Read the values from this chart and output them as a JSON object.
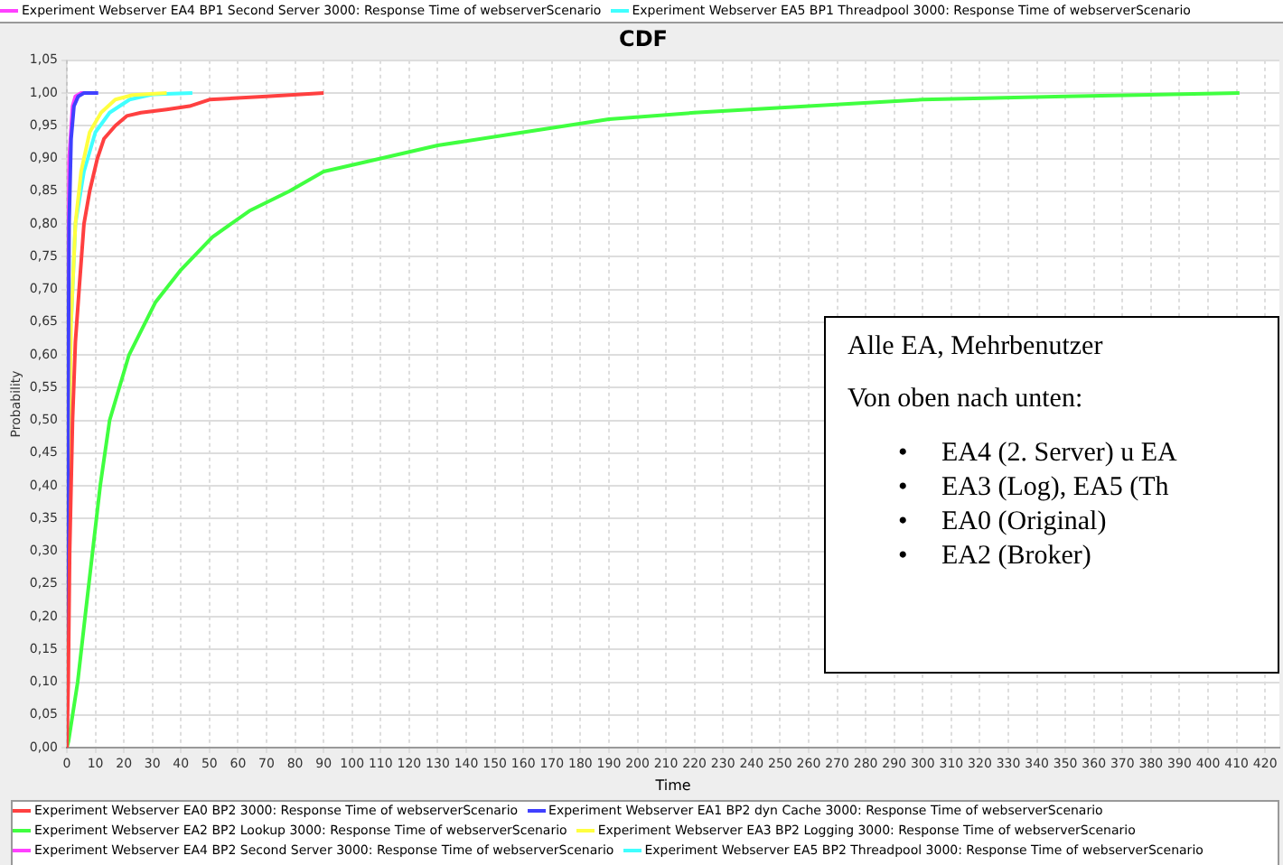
{
  "chart_data": {
    "type": "line",
    "title": "CDF",
    "xlabel": "Time",
    "ylabel": "Probability",
    "xlim": [
      0,
      425
    ],
    "xticks": [
      0,
      10,
      20,
      30,
      40,
      50,
      60,
      70,
      80,
      90,
      100,
      110,
      120,
      130,
      140,
      150,
      160,
      170,
      180,
      190,
      200,
      210,
      220,
      230,
      240,
      250,
      260,
      270,
      280,
      290,
      300,
      310,
      320,
      330,
      340,
      350,
      360,
      370,
      380,
      390,
      400,
      410,
      420
    ],
    "ylim": [
      0,
      1.05
    ],
    "yticks": [
      {
        "value": 0,
        "label": "0,00"
      },
      {
        "value": 0.05,
        "label": "0,05"
      },
      {
        "value": 0.1,
        "label": "0,10"
      },
      {
        "value": 0.15,
        "label": "0,15"
      },
      {
        "value": 0.2,
        "label": "0,20"
      },
      {
        "value": 0.25,
        "label": "0,25"
      },
      {
        "value": 0.3,
        "label": "0,30"
      },
      {
        "value": 0.35,
        "label": "0,35"
      },
      {
        "value": 0.4,
        "label": "0,40"
      },
      {
        "value": 0.45,
        "label": "0,45"
      },
      {
        "value": 0.5,
        "label": "0,50"
      },
      {
        "value": 0.55,
        "label": "0,55"
      },
      {
        "value": 0.6,
        "label": "0,60"
      },
      {
        "value": 0.65,
        "label": "0,65"
      },
      {
        "value": 0.7,
        "label": "0,70"
      },
      {
        "value": 0.75,
        "label": "0,75"
      },
      {
        "value": 0.8,
        "label": "0,80"
      },
      {
        "value": 0.85,
        "label": "0,85"
      },
      {
        "value": 0.9,
        "label": "0,90"
      },
      {
        "value": 0.95,
        "label": "0,95"
      },
      {
        "value": 1.0,
        "label": "1,00"
      },
      {
        "value": 1.05,
        "label": "1,05"
      }
    ],
    "grid": true,
    "legend": "bottom",
    "marker": "none",
    "line_style": "solid",
    "series": [
      {
        "name": "Experiment Webserver EA0 BP2 3000: Response Time of webserverScenario",
        "color": "#ff4040",
        "x": [
          0,
          0.5,
          1,
          2,
          3,
          4.3,
          6,
          8,
          10.7,
          13,
          17,
          21,
          26,
          35,
          43,
          50,
          70,
          90
        ],
        "values": [
          0,
          0.1,
          0.3,
          0.5,
          0.62,
          0.7,
          0.8,
          0.85,
          0.9,
          0.93,
          0.95,
          0.965,
          0.97,
          0.975,
          0.98,
          0.99,
          0.995,
          1.0
        ]
      },
      {
        "name": "Experiment Webserver EA1 BP2 dyn Cache 3000: Response Time of webserverScenario",
        "color": "#4040ff",
        "x": [
          0,
          0.3,
          0.8,
          1.5,
          2.5,
          4,
          6,
          11
        ],
        "values": [
          0,
          0.4,
          0.8,
          0.93,
          0.98,
          0.995,
          1.0,
          1.0
        ]
      },
      {
        "name": "Experiment Webserver EA2 BP2 Lookup 3000: Response Time of webserverScenario",
        "color": "#40ff40",
        "x": [
          0,
          0.6,
          3.8,
          6.4,
          11.7,
          15,
          21.8,
          31,
          40,
          51,
          64,
          78,
          90,
          100,
          130,
          160,
          190,
          220,
          260,
          300,
          350,
          411
        ],
        "values": [
          0,
          0.01,
          0.1,
          0.2,
          0.4,
          0.5,
          0.6,
          0.68,
          0.73,
          0.78,
          0.82,
          0.85,
          0.88,
          0.89,
          0.92,
          0.94,
          0.96,
          0.97,
          0.98,
          0.99,
          0.995,
          1.0
        ]
      },
      {
        "name": "Experiment Webserver EA3 BP2 Logging 3000: Response Time of webserverScenario",
        "color": "#ffff40",
        "x": [
          0,
          0.5,
          1.5,
          3,
          5,
          8,
          12,
          17,
          23,
          35
        ],
        "values": [
          0,
          0.4,
          0.65,
          0.8,
          0.88,
          0.94,
          0.97,
          0.99,
          0.997,
          1.0
        ]
      },
      {
        "name": "Experiment Webserver EA4 BP2 Second Server 3000: Response Time of webserverScenario",
        "color": "#ff40ff",
        "x": [
          0.3,
          0.8,
          2,
          3,
          5,
          7
        ],
        "values": [
          0.6,
          0.9,
          0.98,
          0.995,
          1.0,
          1.0
        ]
      },
      {
        "name": "Experiment Webserver EA5 BP2 Threadpool 3000: Response Time of webserverScenario",
        "color": "#40ffff",
        "x": [
          1.5,
          3,
          6,
          10,
          15,
          22,
          30,
          44
        ],
        "values": [
          0.65,
          0.8,
          0.88,
          0.94,
          0.97,
          0.99,
          0.998,
          1.0
        ]
      }
    ],
    "annotations": [
      "Experiment Webserver EA4 BP1 Second Server 3000: Response Time of webserverScenario",
      "Experiment Webserver EA5 BP1 Threadpool 3000: Response Time of webserverScenario",
      "Alle EA, Mehrbenutzer",
      "Von oben nach unten:",
      "•     EA4 (2. Server) u EA",
      "•     EA3 (Log), EA5 (Th",
      "•     EA0 (Original)",
      "•     EA2 (Broker)"
    ]
  }
}
